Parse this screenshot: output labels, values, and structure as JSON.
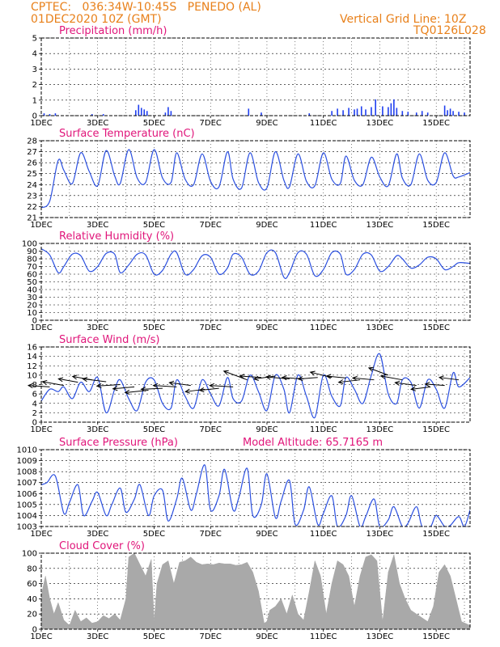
{
  "header": {
    "left_line1": "CPTEC:   036:34W-10:45S   PENEDO (AL)",
    "left_line2": "01DEC2020 10Z (GMT)",
    "right_line1": "Vertical Grid Line: 10Z",
    "right_line2": "TQ0126L028"
  },
  "colors": {
    "header": "#e8801a",
    "title": "#e0157a",
    "line": "#2a4fe0",
    "bar": "#1f3ff0",
    "cloud": "#a9a9a9",
    "wind_arrow": "#000000"
  },
  "x_axis": {
    "day_labels": [
      "1DEC",
      "3DEC",
      "5DEC",
      "7DEC",
      "9DEC",
      "11DEC",
      "13DEC",
      "15DEC"
    ],
    "day_range": [
      1,
      16.2
    ]
  },
  "chart_data": [
    {
      "type": "bar",
      "title": "Precipitation (mm/h)",
      "ylim": [
        0,
        5
      ],
      "yticks": [
        "0",
        "1",
        "2",
        "3",
        "4",
        "5"
      ],
      "series": [
        {
          "x": [
            1.1,
            1.3,
            1.5,
            2.8,
            3.2,
            4.35,
            4.45,
            4.55,
            4.65,
            4.75,
            5.4,
            5.5,
            5.6,
            8.35,
            8.8,
            10.5,
            11.3,
            11.5,
            11.7,
            11.9,
            12.1,
            12.2,
            12.35,
            12.5,
            12.7,
            12.85,
            13.1,
            13.3,
            13.4,
            13.5,
            13.6,
            13.8,
            14.0,
            14.3,
            14.5,
            14.7,
            15.3,
            15.4,
            15.5,
            15.6,
            15.8,
            16.0
          ],
          "values": [
            0.15,
            0.1,
            0.15,
            0.1,
            0.1,
            0.35,
            0.7,
            0.5,
            0.4,
            0.3,
            0.2,
            0.55,
            0.3,
            0.45,
            0.2,
            0.15,
            0.3,
            0.45,
            0.35,
            0.5,
            0.4,
            0.45,
            0.6,
            0.4,
            0.55,
            1.05,
            0.6,
            0.55,
            0.8,
            1.05,
            0.5,
            0.3,
            0.25,
            0.2,
            0.3,
            0.2,
            0.65,
            0.35,
            0.45,
            0.3,
            0.25,
            0.2
          ]
        }
      ]
    },
    {
      "type": "line",
      "title": "Surface Temperature (nC)",
      "ylim": [
        21,
        28
      ],
      "yticks": [
        "21",
        "22",
        "23",
        "24",
        "25",
        "26",
        "27",
        "28"
      ],
      "series": [
        {
          "x": [
            1.0,
            1.3,
            1.6,
            1.8,
            2.1,
            2.4,
            2.7,
            3.0,
            3.3,
            3.6,
            3.8,
            4.1,
            4.4,
            4.7,
            5.0,
            5.3,
            5.6,
            5.8,
            6.1,
            6.4,
            6.7,
            7.0,
            7.3,
            7.6,
            7.8,
            8.1,
            8.4,
            8.7,
            9.0,
            9.3,
            9.6,
            9.8,
            10.1,
            10.4,
            10.7,
            11.0,
            11.3,
            11.6,
            11.8,
            12.1,
            12.4,
            12.7,
            13.0,
            13.3,
            13.6,
            13.8,
            14.1,
            14.4,
            14.7,
            15.0,
            15.3,
            15.6,
            15.8,
            16.2
          ],
          "values": [
            21.9,
            22.5,
            26.2,
            25.3,
            24.1,
            26.9,
            25.2,
            23.9,
            27.1,
            24.8,
            24.1,
            27.2,
            24.6,
            24.2,
            27.2,
            24.6,
            24.2,
            26.9,
            24.5,
            24.0,
            26.8,
            24.3,
            23.8,
            27.0,
            24.5,
            23.7,
            26.9,
            24.2,
            23.7,
            27.0,
            24.4,
            23.8,
            26.8,
            24.3,
            23.9,
            26.9,
            24.5,
            24.1,
            26.6,
            24.4,
            24.0,
            26.5,
            24.7,
            23.9,
            26.8,
            24.6,
            24.0,
            26.8,
            24.4,
            24.2,
            26.9,
            24.8,
            24.7,
            25.1
          ]
        }
      ]
    },
    {
      "type": "line",
      "title": "Relative Humidity (%)",
      "ylim": [
        0,
        100
      ],
      "yticks": [
        "0",
        "10",
        "20",
        "30",
        "40",
        "50",
        "60",
        "70",
        "80",
        "90",
        "100"
      ],
      "series": [
        {
          "x": [
            1.0,
            1.3,
            1.6,
            1.8,
            2.1,
            2.4,
            2.7,
            3.0,
            3.3,
            3.6,
            3.8,
            4.1,
            4.4,
            4.7,
            5.0,
            5.3,
            5.6,
            5.8,
            6.1,
            6.4,
            6.7,
            7.0,
            7.3,
            7.6,
            7.8,
            8.1,
            8.4,
            8.7,
            9.0,
            9.3,
            9.6,
            9.8,
            10.1,
            10.4,
            10.7,
            11.0,
            11.3,
            11.6,
            11.8,
            12.1,
            12.4,
            12.7,
            13.0,
            13.3,
            13.6,
            13.8,
            14.1,
            14.4,
            14.7,
            15.0,
            15.3,
            15.6,
            15.8,
            16.2
          ],
          "values": [
            93,
            85,
            62,
            70,
            86,
            84,
            64,
            70,
            87,
            86,
            62,
            72,
            86,
            85,
            60,
            65,
            86,
            88,
            60,
            66,
            84,
            82,
            60,
            68,
            86,
            82,
            60,
            64,
            88,
            88,
            56,
            62,
            88,
            86,
            58,
            66,
            88,
            86,
            60,
            66,
            86,
            85,
            64,
            70,
            84,
            80,
            68,
            72,
            82,
            80,
            66,
            70,
            75,
            74
          ]
        }
      ]
    },
    {
      "type": "line",
      "title": "Surface Wind (m/s)",
      "ylim": [
        0,
        16
      ],
      "yticks": [
        "0",
        "2",
        "4",
        "6",
        "8",
        "10",
        "12",
        "14",
        "16"
      ],
      "series": [
        {
          "x": [
            1.0,
            1.3,
            1.6,
            1.8,
            2.1,
            2.4,
            2.7,
            3.0,
            3.3,
            3.6,
            3.8,
            4.1,
            4.4,
            4.7,
            5.0,
            5.3,
            5.6,
            5.8,
            6.1,
            6.4,
            6.7,
            7.0,
            7.3,
            7.6,
            7.8,
            8.1,
            8.4,
            8.7,
            9.0,
            9.3,
            9.6,
            9.8,
            10.1,
            10.4,
            10.7,
            11.0,
            11.3,
            11.6,
            11.8,
            12.1,
            12.4,
            12.7,
            13.0,
            13.3,
            13.6,
            13.8,
            14.1,
            14.4,
            14.7,
            15.0,
            15.3,
            15.6,
            15.8,
            16.2
          ],
          "values": [
            4.5,
            7.0,
            6.5,
            7.5,
            5.0,
            8.5,
            6.5,
            9.5,
            2.0,
            7.0,
            9.0,
            5.0,
            2.5,
            8.5,
            9.0,
            4.0,
            3.0,
            9.0,
            5.5,
            3.0,
            9.0,
            6.0,
            3.5,
            9.5,
            5.0,
            4.5,
            10.0,
            6.5,
            2.5,
            10.0,
            7.0,
            2.0,
            10.0,
            5.5,
            1.0,
            10.0,
            5.5,
            3.5,
            9.5,
            7.0,
            4.0,
            10.0,
            14.5,
            6.0,
            4.0,
            9.0,
            8.5,
            3.0,
            9.0,
            7.0,
            3.0,
            10.5,
            7.5,
            9.5
          ]
        }
      ],
      "wind_barbs": {
        "x": [
          1.3,
          1.8,
          2.3,
          2.8,
          3.3,
          3.8,
          4.3,
          4.8,
          5.3,
          5.8,
          6.3,
          6.8,
          7.3,
          7.8,
          8.3,
          8.8,
          9.3,
          9.8,
          10.3,
          10.8,
          11.3,
          11.8,
          12.3,
          12.8,
          13.3,
          13.8,
          14.3,
          14.8,
          15.3,
          15.8
        ],
        "values": [
          7.5,
          7.8,
          8.5,
          9.0,
          8.6,
          8.0,
          7.5,
          6.8,
          7.2,
          7.5,
          7.8,
          7.0,
          7.2,
          7.5,
          9.0,
          9.5,
          9.8,
          9.2,
          9.2,
          9.5,
          9.5,
          9.4,
          9.0,
          9.0,
          10.0,
          9.0,
          7.8,
          7.5,
          7.8,
          9.0
        ],
        "dx": [
          -1.1,
          -1.1,
          -1.0,
          -1.0,
          -1.2,
          -1.2,
          -1.1,
          -1.2,
          -1.1,
          -1.2,
          -1.1,
          -1.0,
          -1.0,
          -1.2,
          -1.2,
          -1.1,
          -1.1,
          -1.2,
          -1.1,
          -1.0,
          -1.1,
          -1.0,
          -1.1,
          -1.1,
          -1.0,
          -1.1,
          -1.1,
          -1.0,
          -1.0,
          -1.0
        ],
        "dy": [
          0.3,
          0.8,
          0.7,
          0.7,
          0.6,
          -0.3,
          -0.4,
          -0.5,
          -0.2,
          0.3,
          0.6,
          -0.5,
          -0.4,
          0.3,
          1.8,
          0.3,
          -0.6,
          0.4,
          0.3,
          -0.3,
          1.1,
          0.4,
          -0.5,
          0.4,
          1.5,
          0.8,
          0.6,
          -0.5,
          0.3,
          0.5
        ]
      }
    },
    {
      "type": "line",
      "title": "Surface Pressure (hPa)",
      "annotation": "Model Altitude: 65.7165 m",
      "ylim": [
        1003,
        1010
      ],
      "yticks": [
        "1003",
        "1004",
        "1005",
        "1006",
        "1007",
        "1008",
        "1009",
        "1010"
      ],
      "series": [
        {
          "x": [
            1.0,
            1.2,
            1.5,
            1.8,
            2.0,
            2.3,
            2.5,
            2.8,
            3.0,
            3.3,
            3.5,
            3.8,
            4.0,
            4.3,
            4.5,
            4.8,
            5.0,
            5.3,
            5.5,
            5.8,
            6.0,
            6.3,
            6.5,
            6.8,
            7.0,
            7.3,
            7.5,
            7.8,
            8.0,
            8.3,
            8.5,
            8.8,
            9.0,
            9.3,
            9.5,
            9.8,
            10.0,
            10.3,
            10.5,
            10.8,
            11.0,
            11.3,
            11.5,
            11.8,
            12.0,
            12.3,
            12.5,
            12.8,
            13.0,
            13.3,
            13.5,
            13.8,
            14.0,
            14.3,
            14.5,
            14.8,
            15.0,
            15.3,
            15.5,
            15.8,
            16.0,
            16.2
          ],
          "values": [
            1006.8,
            1007.0,
            1007.6,
            1004.2,
            1005.2,
            1006.8,
            1004.0,
            1005.3,
            1006.1,
            1004.0,
            1005.0,
            1006.5,
            1004.3,
            1005.5,
            1006.8,
            1004.0,
            1005.8,
            1006.3,
            1003.5,
            1005.5,
            1007.4,
            1004.5,
            1006.0,
            1008.6,
            1004.5,
            1005.8,
            1008.2,
            1004.5,
            1005.6,
            1008.3,
            1004.0,
            1005.0,
            1007.8,
            1003.8,
            1005.3,
            1007.2,
            1003.2,
            1004.5,
            1006.6,
            1003.2,
            1004.2,
            1005.8,
            1003.0,
            1004.0,
            1005.8,
            1003.0,
            1003.9,
            1005.5,
            1003.0,
            1003.6,
            1004.8,
            1003.0,
            1003.3,
            1004.8,
            1003.0,
            1003.0,
            1004.0,
            1003.0,
            1003.1,
            1003.9,
            1003.0,
            1004.5
          ]
        }
      ]
    },
    {
      "type": "area",
      "title": "Cloud Cover (%)",
      "ylim": [
        0,
        100
      ],
      "yticks": [
        "0",
        "20",
        "40",
        "60",
        "80",
        "100"
      ],
      "series": [
        {
          "x": [
            1.0,
            1.15,
            1.3,
            1.45,
            1.6,
            1.8,
            2.0,
            2.2,
            2.4,
            2.6,
            2.8,
            3.0,
            3.2,
            3.4,
            3.6,
            3.8,
            4.0,
            4.1,
            4.3,
            4.5,
            4.7,
            4.9,
            5.0,
            5.1,
            5.3,
            5.5,
            5.7,
            5.9,
            6.1,
            6.3,
            6.5,
            6.7,
            6.9,
            7.1,
            7.3,
            7.5,
            7.7,
            7.9,
            8.1,
            8.3,
            8.5,
            8.7,
            8.9,
            9.0,
            9.1,
            9.3,
            9.5,
            9.7,
            9.9,
            10.1,
            10.3,
            10.5,
            10.7,
            10.9,
            11.1,
            11.3,
            11.5,
            11.7,
            11.9,
            12.1,
            12.3,
            12.5,
            12.7,
            12.9,
            13.1,
            13.3,
            13.5,
            13.7,
            13.9,
            14.1,
            14.3,
            14.5,
            14.7,
            14.9,
            15.1,
            15.3,
            15.5,
            15.7,
            15.9,
            16.2
          ],
          "values": [
            45,
            70,
            40,
            20,
            35,
            12,
            5,
            25,
            10,
            15,
            8,
            10,
            18,
            14,
            20,
            12,
            40,
            95,
            100,
            85,
            70,
            92,
            10,
            60,
            85,
            90,
            60,
            88,
            90,
            95,
            88,
            85,
            86,
            85,
            87,
            86,
            86,
            84,
            85,
            88,
            75,
            50,
            8,
            10,
            25,
            30,
            40,
            20,
            45,
            20,
            12,
            50,
            90,
            70,
            20,
            60,
            90,
            85,
            70,
            30,
            70,
            95,
            98,
            90,
            10,
            75,
            98,
            60,
            40,
            25,
            20,
            15,
            10,
            30,
            75,
            85,
            70,
            40,
            10,
            5
          ]
        }
      ]
    }
  ]
}
